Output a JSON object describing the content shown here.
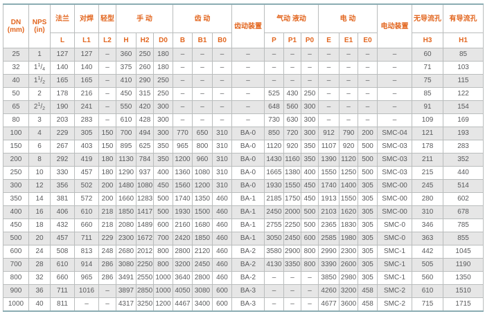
{
  "table": {
    "header": {
      "dn_line1": "DN",
      "dn_line2": "(mm)",
      "nps_line1": "NPS",
      "nps_line2": "(in)",
      "flange": "法兰",
      "butt_weld": "对焊",
      "light_type": "轻型",
      "manual": "手 动",
      "gear": "齿 动",
      "gear_device": "齿动装置",
      "pneumatic_hydraulic": "气动 液动",
      "electric": "电 动",
      "electric_device": "电动装置",
      "no_flow_hole": "无导流孔",
      "flow_hole": "有导流孔",
      "sub": [
        "L",
        "L1",
        "L2",
        "H",
        "H2",
        "D0",
        "B",
        "B1",
        "B0",
        "P",
        "P1",
        "P0",
        "E",
        "E1",
        "E0",
        "H3",
        "H1"
      ]
    },
    "rows": [
      [
        "25",
        "1",
        "127",
        "127",
        "–",
        "360",
        "250",
        "180",
        "–",
        "–",
        "–",
        "–",
        "–",
        "–",
        "–",
        "–",
        "–",
        "–",
        "–",
        "60",
        "85"
      ],
      [
        "32",
        "1 1/4",
        "140",
        "140",
        "–",
        "375",
        "260",
        "180",
        "–",
        "–",
        "–",
        "–",
        "–",
        "–",
        "–",
        "–",
        "–",
        "–",
        "–",
        "71",
        "103"
      ],
      [
        "40",
        "1 1/2",
        "165",
        "165",
        "–",
        "410",
        "290",
        "250",
        "–",
        "–",
        "–",
        "–",
        "–",
        "–",
        "–",
        "–",
        "–",
        "–",
        "–",
        "75",
        "115"
      ],
      [
        "50",
        "2",
        "178",
        "216",
        "–",
        "450",
        "315",
        "250",
        "–",
        "–",
        "–",
        "–",
        "525",
        "430",
        "250",
        "–",
        "–",
        "–",
        "–",
        "85",
        "122"
      ],
      [
        "65",
        "2 1/2",
        "190",
        "241",
        "–",
        "550",
        "420",
        "300",
        "–",
        "–",
        "–",
        "–",
        "648",
        "560",
        "300",
        "–",
        "–",
        "–",
        "–",
        "91",
        "154"
      ],
      [
        "80",
        "3",
        "203",
        "283",
        "–",
        "610",
        "428",
        "300",
        "–",
        "–",
        "–",
        "–",
        "730",
        "630",
        "300",
        "–",
        "–",
        "–",
        "–",
        "109",
        "169"
      ],
      [
        "100",
        "4",
        "229",
        "305",
        "150",
        "700",
        "494",
        "300",
        "770",
        "650",
        "310",
        "BA-0",
        "850",
        "720",
        "300",
        "912",
        "790",
        "200",
        "SMC-04",
        "121",
        "193"
      ],
      [
        "150",
        "6",
        "267",
        "403",
        "150",
        "895",
        "625",
        "350",
        "965",
        "800",
        "310",
        "BA-0",
        "1120",
        "920",
        "350",
        "1107",
        "920",
        "500",
        "SMC-03",
        "178",
        "283"
      ],
      [
        "200",
        "8",
        "292",
        "419",
        "180",
        "1130",
        "784",
        "350",
        "1200",
        "960",
        "310",
        "BA-0",
        "1430",
        "1160",
        "350",
        "1390",
        "1120",
        "500",
        "SMC-03",
        "211",
        "352"
      ],
      [
        "250",
        "10",
        "330",
        "457",
        "180",
        "1290",
        "937",
        "400",
        "1360",
        "1080",
        "310",
        "BA-0",
        "1665",
        "1380",
        "400",
        "1550",
        "1250",
        "500",
        "SMC-03",
        "215",
        "440"
      ],
      [
        "300",
        "12",
        "356",
        "502",
        "200",
        "1480",
        "1080",
        "450",
        "1560",
        "1200",
        "310",
        "BA-0",
        "1930",
        "1550",
        "450",
        "1740",
        "1400",
        "305",
        "SMC-00",
        "245",
        "514"
      ],
      [
        "350",
        "14",
        "381",
        "572",
        "200",
        "1660",
        "1283",
        "500",
        "1740",
        "1350",
        "460",
        "BA-1",
        "2185",
        "1750",
        "450",
        "1913",
        "1550",
        "305",
        "SMC-00",
        "280",
        "602"
      ],
      [
        "400",
        "16",
        "406",
        "610",
        "218",
        "1850",
        "1417",
        "500",
        "1930",
        "1500",
        "460",
        "BA-1",
        "2450",
        "2000",
        "500",
        "2103",
        "1620",
        "305",
        "SMC-00",
        "310",
        "678"
      ],
      [
        "450",
        "18",
        "432",
        "660",
        "218",
        "2080",
        "1489",
        "600",
        "2160",
        "1680",
        "460",
        "BA-1",
        "2755",
        "2250",
        "500",
        "2365",
        "1830",
        "305",
        "SMC-0",
        "346",
        "785"
      ],
      [
        "500",
        "20",
        "457",
        "711",
        "229",
        "2300",
        "1672",
        "700",
        "2420",
        "1850",
        "460",
        "BA-1",
        "3050",
        "2450",
        "600",
        "2585",
        "1980",
        "305",
        "SMC-0",
        "363",
        "855"
      ],
      [
        "600",
        "24",
        "508",
        "813",
        "248",
        "2680",
        "2012",
        "800",
        "2800",
        "2120",
        "460",
        "BA-2",
        "3580",
        "2900",
        "800",
        "2990",
        "2300",
        "305",
        "SMC-1",
        "442",
        "1045"
      ],
      [
        "700",
        "28",
        "610",
        "914",
        "286",
        "3080",
        "2250",
        "800",
        "3200",
        "2450",
        "460",
        "BA-2",
        "4130",
        "3350",
        "800",
        "3390",
        "2600",
        "305",
        "SMC-1",
        "505",
        "1190"
      ],
      [
        "800",
        "32",
        "660",
        "965",
        "286",
        "3491",
        "2550",
        "1000",
        "3640",
        "2800",
        "460",
        "BA-2",
        "–",
        "–",
        "–",
        "3850",
        "2980",
        "305",
        "SMC-1",
        "560",
        "1350"
      ],
      [
        "900",
        "36",
        "711",
        "1016",
        "–",
        "3897",
        "2850",
        "1000",
        "4050",
        "3080",
        "600",
        "BA-3",
        "–",
        "–",
        "–",
        "4260",
        "3200",
        "458",
        "SMC-2",
        "610",
        "1510"
      ],
      [
        "1000",
        "40",
        "811",
        "–",
        "–",
        "4317",
        "3250",
        "1200",
        "4467",
        "3400",
        "600",
        "BA-3",
        "–",
        "–",
        "–",
        "4677",
        "3600",
        "458",
        "SMC-2",
        "715",
        "1715"
      ]
    ],
    "colors": {
      "header_text": "#e2661f",
      "body_text": "#58595b",
      "stripe": "#e6e6e6",
      "grid": "#b9bcbc",
      "frame": "#8aacb2"
    }
  }
}
